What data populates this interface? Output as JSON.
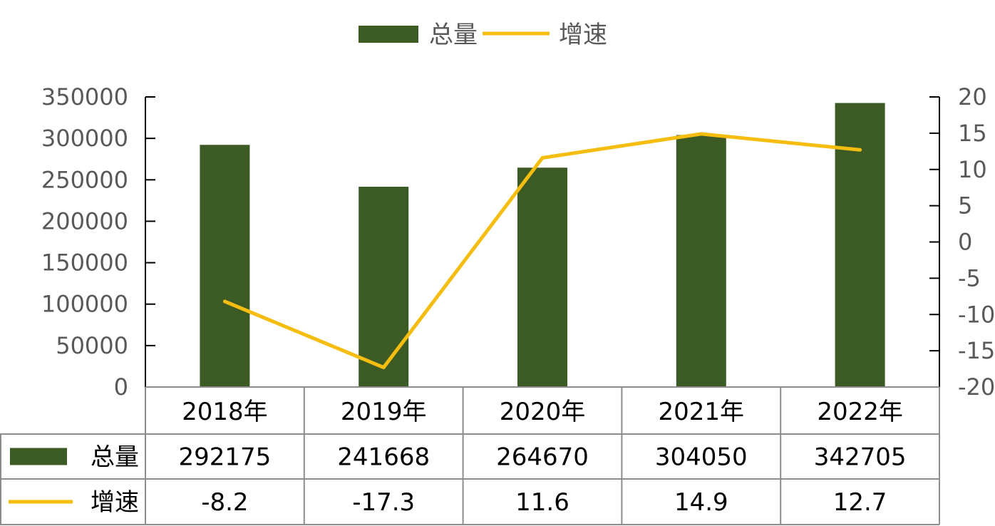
{
  "chart_data": {
    "type": "bar",
    "categories": [
      "2018年",
      "2019年",
      "2020年",
      "2021年",
      "2022年"
    ],
    "series": [
      {
        "name": "总量",
        "kind": "bar",
        "axis": "left",
        "color": "#3c5a24",
        "values": [
          292175,
          241668,
          264670,
          304050,
          342705
        ]
      },
      {
        "name": "增速",
        "kind": "line",
        "axis": "right",
        "color": "#f5bd0f",
        "values": [
          -8.2,
          -17.3,
          11.6,
          14.9,
          12.7
        ]
      }
    ],
    "y_left": {
      "min": 0,
      "max": 350000,
      "ticks": [
        "0",
        "50000",
        "100000",
        "150000",
        "200000",
        "250000",
        "300000",
        "350000"
      ]
    },
    "y_right": {
      "min": -20,
      "max": 20,
      "ticks": [
        "-20",
        "-15",
        "-10",
        "-5",
        "0",
        "5",
        "10",
        "15",
        "20"
      ]
    },
    "legend_position": "top",
    "data_table": true,
    "grid": false
  }
}
